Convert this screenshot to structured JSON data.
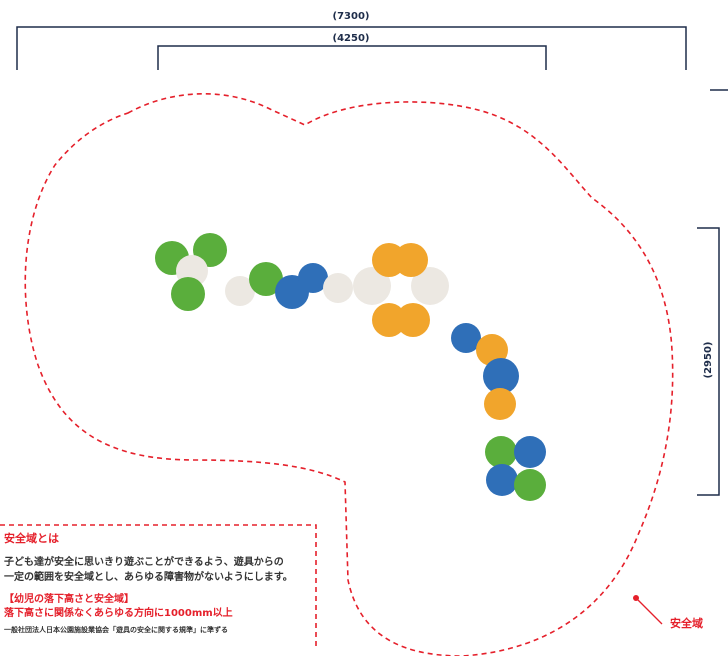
{
  "dimensions": {
    "overall_width": "(7300)",
    "inner_width": "(4250)",
    "depth": "(2950)"
  },
  "safety_zone_label": "安全域",
  "note": {
    "title": "安全域とは",
    "body_line1": "子ども達が安全に思いきり遊ぶことができるよう、遊具からの",
    "body_line2": "一定の範囲を安全域とし、あらゆる障害物がないようにします。",
    "infant_heading": "【幼児の落下高さと安全域】",
    "infant_rule": "落下高さに関係なくあらゆる方向に1000mm以上",
    "source": "一般社団法人日本公園施設業協会「遊具の安全に関する規準」に準ずる"
  },
  "colors": {
    "green": "#5aae3c",
    "blue": "#2f6fb8",
    "orange": "#f1a52c",
    "white": "#ece8e2",
    "safety_red": "#e5202b",
    "dimension_navy": "#1e2d4a"
  }
}
